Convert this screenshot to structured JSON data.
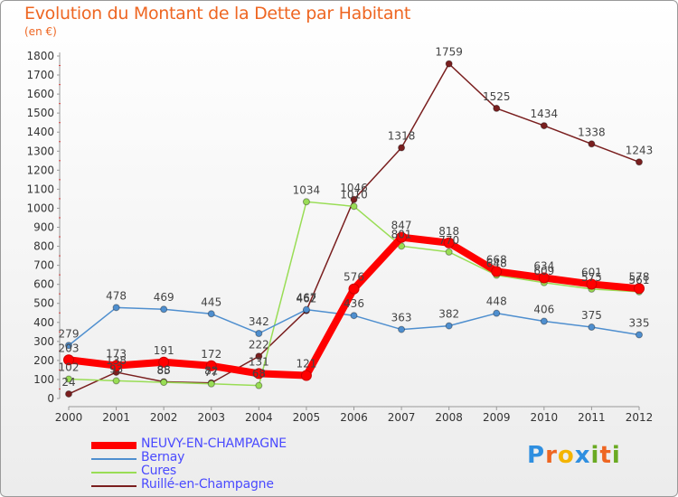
{
  "chart_data": {
    "type": "line",
    "title": "Evolution du Montant de la Dette par Habitant",
    "subtitle": "(en €)",
    "xlabel": "",
    "ylabel": "",
    "x": [
      "2000",
      "2001",
      "2002",
      "2003",
      "2004",
      "2005",
      "2006",
      "2007",
      "2008",
      "2009",
      "2010",
      "2011",
      "2012"
    ],
    "ylim": [
      0,
      1800
    ],
    "yticks": [
      0,
      100,
      200,
      300,
      400,
      500,
      600,
      700,
      800,
      900,
      1000,
      1100,
      1200,
      1300,
      1400,
      1500,
      1600,
      1700,
      1800
    ],
    "grid": false,
    "legend_position": "bottom-left",
    "series": [
      {
        "name": "Ruillé-en-Champagne",
        "color": "#7a1f1f",
        "values": [
          24,
          138,
          88,
          82,
          222,
          462,
          1046,
          1318,
          1759,
          1525,
          1434,
          1338,
          1243
        ]
      },
      {
        "name": "Cures",
        "color": "#99dd55",
        "values": [
          102,
          93,
          85,
          77,
          68,
          1034,
          1010,
          801,
          770,
          648,
          609,
          575,
          561
        ]
      },
      {
        "name": "Bernay",
        "color": "#4f8fcf",
        "values": [
          279,
          478,
          469,
          445,
          342,
          467,
          436,
          363,
          382,
          448,
          406,
          375,
          335
        ]
      },
      {
        "name": "NEUVY-EN-CHAMPAGNE",
        "color": "#ff0000",
        "values": [
          203,
          173,
          191,
          172,
          131,
          121,
          576,
          847,
          818,
          668,
          634,
          601,
          578
        ]
      }
    ],
    "legend": [
      "NEUVY-EN-CHAMPAGNE",
      "Bernay",
      "Cures",
      "Ruillé-en-Champagne"
    ]
  },
  "logo": {
    "letters": [
      "P",
      "r",
      "o",
      "x",
      "i",
      "t",
      "i"
    ],
    "colors": [
      "#2f8fe0",
      "#ee6622",
      "#f4b400",
      "#2f8fe0",
      "#6aaa22",
      "#ee6622",
      "#6aaa22"
    ]
  }
}
